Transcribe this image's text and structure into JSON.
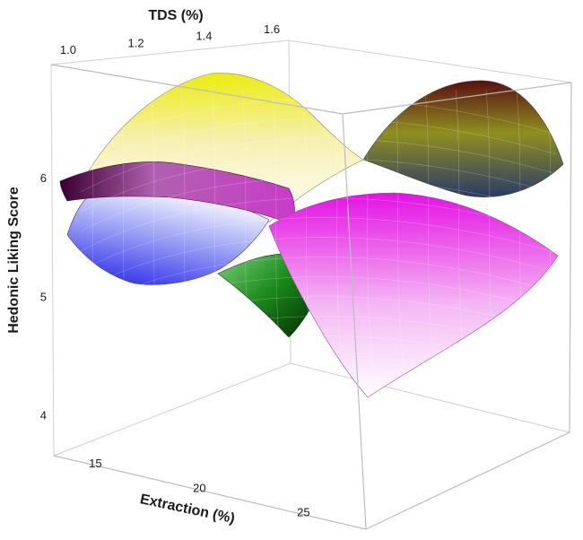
{
  "chart_data": {
    "type": "surface",
    "title": "",
    "xlabel": "TDS (%)",
    "ylabel": "Extraction (%)",
    "zlabel": "Hedonic Liking Score",
    "x_ticks": [
      "1.0",
      "1.2",
      "1.4",
      "1.6"
    ],
    "y_ticks": [
      "15",
      "20",
      "25"
    ],
    "z_ticks": [
      "4",
      "5",
      "6"
    ],
    "xlim": [
      0.95,
      1.65
    ],
    "ylim": [
      13,
      28
    ],
    "zlim": [
      3.8,
      6.9
    ],
    "grid": false,
    "legend": "none",
    "surfaces": [
      {
        "color": "#f2f20a",
        "corners": {
          "x0_y0": 5.9,
          "x1_y0": 3.9,
          "x0_y1": 5.4,
          "x1_y1": 5.6
        },
        "peak": {
          "x": 1.25,
          "y": 16.5,
          "z": 6.9
        }
      },
      {
        "color": "#6b1e1e",
        "corners": {
          "x0_y0": 5.5,
          "x1_y0": 5.4,
          "x0_y1": 5.6,
          "x1_y1": 5.6
        },
        "peak": {
          "x": 1.6,
          "y": 24.5,
          "z": 6.8
        }
      },
      {
        "color": "#2a2aee",
        "corners": {
          "x0_y0": 5.5,
          "x1_y0": 5.4,
          "x0_y1": 5.3,
          "x1_y1": 5.2
        },
        "peak": {
          "x": 1.0,
          "y": 14.0,
          "z": 6.2
        }
      },
      {
        "color": "#e817e8",
        "corners": {
          "x0_y0": 5.9,
          "x1_y0": 5.7,
          "x0_y1": 4.6,
          "x1_y1": 5.1
        },
        "peak": {
          "x": 1.45,
          "y": 21.0,
          "z": 6.0
        }
      },
      {
        "color": "#1a7a1a",
        "corners": {
          "x0_y0": 4.9,
          "x1_y0": 4.8,
          "x0_y1": 4.5,
          "x1_y1": 4.5
        },
        "peak": {
          "x": 1.15,
          "y": 20.0,
          "z": 5.1
        }
      }
    ]
  }
}
